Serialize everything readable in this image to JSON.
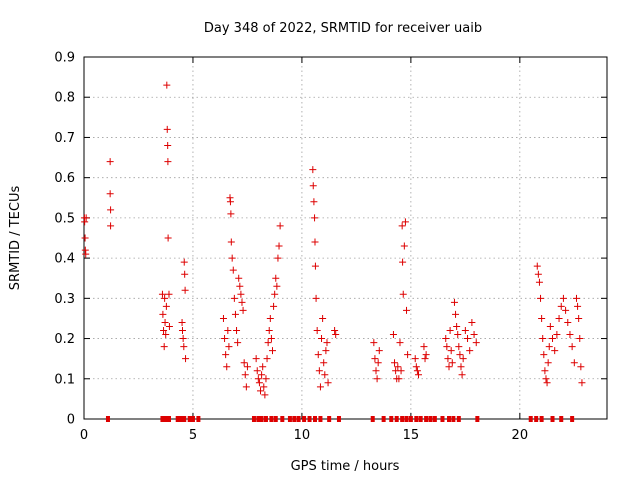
{
  "chart_data": {
    "type": "scatter",
    "title": "Day 348 of 2022, SRMTID for receiver uaib",
    "xlabel": "GPS time / hours",
    "ylabel": "SRMTID / TECUs",
    "xlim": [
      0,
      24
    ],
    "ylim": [
      0,
      0.9
    ],
    "xticks": [
      0,
      5,
      10,
      15,
      20
    ],
    "xtick_labels": [
      "0",
      "5",
      "10",
      "15",
      "20"
    ],
    "yticks": [
      0,
      0.1,
      0.2,
      0.3,
      0.4,
      0.5,
      0.6,
      0.7,
      0.8,
      0.9
    ],
    "ytick_labels": [
      "0",
      "0.1",
      "0.2",
      "0.3",
      "0.4",
      "0.5",
      "0.6",
      "0.7",
      "0.8",
      "0.9"
    ],
    "grid": true,
    "marker": "+",
    "series": [
      {
        "name": "SRMTID",
        "color": "#dd0000",
        "points": [
          [
            0.02,
            0.5
          ],
          [
            0.03,
            0.49
          ],
          [
            0.05,
            0.45
          ],
          [
            0.06,
            0.42
          ],
          [
            0.08,
            0.41
          ],
          [
            0.1,
            0.5
          ],
          [
            1.2,
            0.64
          ],
          [
            1.2,
            0.56
          ],
          [
            1.22,
            0.52
          ],
          [
            1.22,
            0.48
          ],
          [
            3.6,
            0.31
          ],
          [
            3.62,
            0.26
          ],
          [
            3.65,
            0.22
          ],
          [
            3.68,
            0.18
          ],
          [
            3.7,
            0.3
          ],
          [
            3.72,
            0.24
          ],
          [
            3.75,
            0.21
          ],
          [
            3.78,
            0.28
          ],
          [
            3.8,
            0.83
          ],
          [
            3.82,
            0.72
          ],
          [
            3.84,
            0.68
          ],
          [
            3.85,
            0.64
          ],
          [
            3.86,
            0.45
          ],
          [
            3.9,
            0.31
          ],
          [
            3.92,
            0.23
          ],
          [
            4.5,
            0.24
          ],
          [
            4.52,
            0.22
          ],
          [
            4.55,
            0.2
          ],
          [
            4.58,
            0.18
          ],
          [
            4.6,
            0.39
          ],
          [
            4.62,
            0.36
          ],
          [
            4.64,
            0.32
          ],
          [
            4.66,
            0.15
          ],
          [
            6.4,
            0.25
          ],
          [
            6.45,
            0.2
          ],
          [
            6.5,
            0.16
          ],
          [
            6.55,
            0.13
          ],
          [
            6.6,
            0.22
          ],
          [
            6.65,
            0.18
          ],
          [
            6.7,
            0.55
          ],
          [
            6.72,
            0.54
          ],
          [
            6.74,
            0.51
          ],
          [
            6.76,
            0.44
          ],
          [
            6.8,
            0.4
          ],
          [
            6.85,
            0.37
          ],
          [
            6.9,
            0.3
          ],
          [
            6.95,
            0.26
          ],
          [
            7.0,
            0.22
          ],
          [
            7.05,
            0.19
          ],
          [
            7.1,
            0.35
          ],
          [
            7.15,
            0.33
          ],
          [
            7.2,
            0.31
          ],
          [
            7.25,
            0.29
          ],
          [
            7.3,
            0.27
          ],
          [
            7.35,
            0.14
          ],
          [
            7.4,
            0.11
          ],
          [
            7.45,
            0.08
          ],
          [
            7.5,
            0.13
          ],
          [
            7.9,
            0.15
          ],
          [
            7.95,
            0.12
          ],
          [
            8.0,
            0.1
          ],
          [
            8.05,
            0.09
          ],
          [
            8.1,
            0.07
          ],
          [
            8.15,
            0.11
          ],
          [
            8.2,
            0.13
          ],
          [
            8.25,
            0.08
          ],
          [
            8.3,
            0.06
          ],
          [
            8.35,
            0.1
          ],
          [
            8.4,
            0.15
          ],
          [
            8.45,
            0.19
          ],
          [
            8.5,
            0.22
          ],
          [
            8.55,
            0.25
          ],
          [
            8.6,
            0.2
          ],
          [
            8.65,
            0.17
          ],
          [
            8.7,
            0.28
          ],
          [
            8.75,
            0.31
          ],
          [
            8.8,
            0.35
          ],
          [
            8.85,
            0.33
          ],
          [
            8.9,
            0.4
          ],
          [
            8.95,
            0.43
          ],
          [
            9.0,
            0.48
          ],
          [
            10.5,
            0.62
          ],
          [
            10.52,
            0.58
          ],
          [
            10.55,
            0.54
          ],
          [
            10.58,
            0.5
          ],
          [
            10.6,
            0.44
          ],
          [
            10.62,
            0.38
          ],
          [
            10.65,
            0.3
          ],
          [
            10.7,
            0.22
          ],
          [
            10.75,
            0.16
          ],
          [
            10.8,
            0.12
          ],
          [
            10.85,
            0.08
          ],
          [
            10.9,
            0.2
          ],
          [
            10.95,
            0.25
          ],
          [
            11.0,
            0.14
          ],
          [
            11.05,
            0.11
          ],
          [
            11.1,
            0.17
          ],
          [
            11.15,
            0.19
          ],
          [
            11.2,
            0.09
          ],
          [
            11.5,
            0.22
          ],
          [
            11.55,
            0.21
          ],
          [
            13.3,
            0.19
          ],
          [
            13.35,
            0.15
          ],
          [
            13.4,
            0.12
          ],
          [
            13.45,
            0.1
          ],
          [
            13.5,
            0.14
          ],
          [
            13.55,
            0.17
          ],
          [
            14.2,
            0.21
          ],
          [
            14.25,
            0.14
          ],
          [
            14.3,
            0.12
          ],
          [
            14.35,
            0.1
          ],
          [
            14.4,
            0.13
          ],
          [
            14.45,
            0.1
          ],
          [
            14.5,
            0.19
          ],
          [
            14.55,
            0.12
          ],
          [
            14.6,
            0.48
          ],
          [
            14.62,
            0.39
          ],
          [
            14.65,
            0.31
          ],
          [
            14.7,
            0.43
          ],
          [
            14.75,
            0.49
          ],
          [
            14.8,
            0.27
          ],
          [
            14.85,
            0.16
          ],
          [
            15.2,
            0.15
          ],
          [
            15.25,
            0.13
          ],
          [
            15.3,
            0.12
          ],
          [
            15.35,
            0.11
          ],
          [
            15.6,
            0.18
          ],
          [
            15.65,
            0.15
          ],
          [
            15.7,
            0.16
          ],
          [
            16.6,
            0.2
          ],
          [
            16.65,
            0.18
          ],
          [
            16.7,
            0.15
          ],
          [
            16.75,
            0.13
          ],
          [
            16.8,
            0.22
          ],
          [
            16.85,
            0.17
          ],
          [
            16.9,
            0.14
          ],
          [
            17.0,
            0.29
          ],
          [
            17.05,
            0.26
          ],
          [
            17.1,
            0.23
          ],
          [
            17.15,
            0.21
          ],
          [
            17.2,
            0.18
          ],
          [
            17.25,
            0.16
          ],
          [
            17.3,
            0.13
          ],
          [
            17.35,
            0.11
          ],
          [
            17.4,
            0.15
          ],
          [
            17.5,
            0.22
          ],
          [
            17.6,
            0.2
          ],
          [
            17.7,
            0.17
          ],
          [
            17.8,
            0.24
          ],
          [
            17.9,
            0.21
          ],
          [
            18.0,
            0.19
          ],
          [
            20.8,
            0.38
          ],
          [
            20.85,
            0.36
          ],
          [
            20.9,
            0.34
          ],
          [
            20.95,
            0.3
          ],
          [
            21.0,
            0.25
          ],
          [
            21.05,
            0.2
          ],
          [
            21.1,
            0.16
          ],
          [
            21.15,
            0.12
          ],
          [
            21.2,
            0.1
          ],
          [
            21.25,
            0.09
          ],
          [
            21.3,
            0.14
          ],
          [
            21.35,
            0.18
          ],
          [
            21.4,
            0.23
          ],
          [
            21.5,
            0.2
          ],
          [
            21.6,
            0.17
          ],
          [
            21.7,
            0.21
          ],
          [
            21.8,
            0.25
          ],
          [
            21.9,
            0.28
          ],
          [
            22.0,
            0.3
          ],
          [
            22.1,
            0.27
          ],
          [
            22.2,
            0.24
          ],
          [
            22.3,
            0.21
          ],
          [
            22.4,
            0.18
          ],
          [
            22.5,
            0.14
          ],
          [
            22.6,
            0.3
          ],
          [
            22.65,
            0.28
          ],
          [
            22.7,
            0.25
          ],
          [
            22.75,
            0.2
          ],
          [
            22.8,
            0.13
          ],
          [
            22.85,
            0.09
          ]
        ]
      },
      {
        "name": "Gaps",
        "color": "#dd0000",
        "marker": "square",
        "points": [
          [
            1.1,
            0
          ],
          [
            3.6,
            0
          ],
          [
            3.75,
            0
          ],
          [
            3.9,
            0
          ],
          [
            4.3,
            0
          ],
          [
            4.45,
            0
          ],
          [
            4.6,
            0
          ],
          [
            4.85,
            0
          ],
          [
            5.0,
            0
          ],
          [
            5.25,
            0
          ],
          [
            7.8,
            0
          ],
          [
            8.0,
            0
          ],
          [
            8.15,
            0
          ],
          [
            8.35,
            0
          ],
          [
            8.6,
            0
          ],
          [
            8.8,
            0
          ],
          [
            9.1,
            0
          ],
          [
            9.45,
            0
          ],
          [
            9.65,
            0
          ],
          [
            9.85,
            0
          ],
          [
            10.1,
            0
          ],
          [
            10.35,
            0
          ],
          [
            10.6,
            0
          ],
          [
            10.85,
            0
          ],
          [
            11.25,
            0
          ],
          [
            11.7,
            0
          ],
          [
            13.25,
            0
          ],
          [
            13.75,
            0
          ],
          [
            14.1,
            0
          ],
          [
            14.35,
            0
          ],
          [
            14.6,
            0
          ],
          [
            14.8,
            0
          ],
          [
            15.0,
            0
          ],
          [
            15.25,
            0
          ],
          [
            15.45,
            0
          ],
          [
            15.7,
            0
          ],
          [
            15.9,
            0
          ],
          [
            16.1,
            0
          ],
          [
            16.45,
            0
          ],
          [
            16.75,
            0
          ],
          [
            16.95,
            0
          ],
          [
            17.2,
            0
          ],
          [
            18.05,
            0
          ],
          [
            20.5,
            0
          ],
          [
            20.75,
            0
          ],
          [
            21.0,
            0
          ],
          [
            21.5,
            0
          ],
          [
            21.9,
            0
          ],
          [
            22.4,
            0
          ]
        ]
      }
    ]
  }
}
